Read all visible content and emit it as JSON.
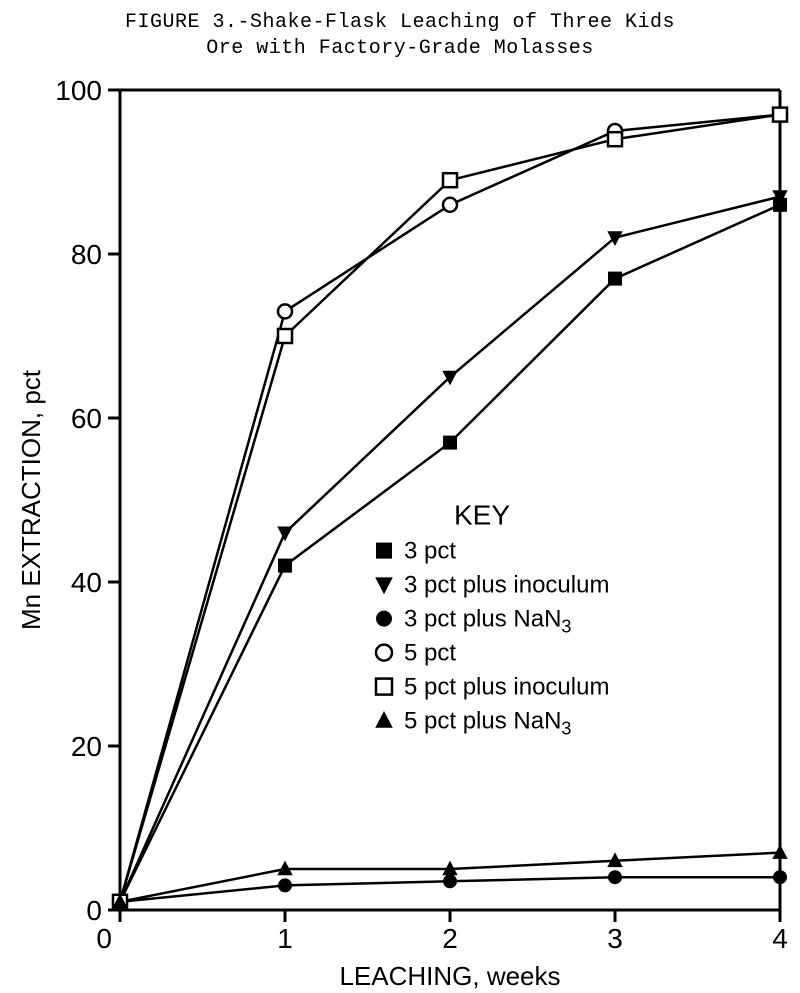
{
  "caption": {
    "line1": "FIGURE 3.-Shake-Flask Leaching of Three Kids",
    "line2": "Ore with Factory-Grade Molasses"
  },
  "chart": {
    "type": "line",
    "background_color": "#ffffff",
    "axis_color": "#000000",
    "axis_line_width": 3,
    "series_line_width": 2.5,
    "x_axis": {
      "label": "LEACHING, weeks",
      "min": 0,
      "max": 4,
      "ticks": [
        0,
        1,
        2,
        3,
        4
      ],
      "tick_labels": [
        "0",
        "1",
        "2",
        "3",
        "4"
      ],
      "label_fontsize": 26,
      "tick_fontsize": 28
    },
    "y_axis": {
      "label": "Mn EXTRACTION, pct",
      "min": 0,
      "max": 100,
      "ticks": [
        0,
        20,
        40,
        60,
        80,
        100
      ],
      "tick_labels": [
        "0",
        "20",
        "40",
        "60",
        "80",
        "100"
      ],
      "label_fontsize": 26,
      "tick_fontsize": 28
    },
    "legend": {
      "title": "KEY",
      "title_fontsize": 28,
      "item_fontsize": 24,
      "items": [
        {
          "marker": "square-filled",
          "label": "3 pct"
        },
        {
          "marker": "triangle-down-filled",
          "label": "3 pct plus inoculum"
        },
        {
          "marker": "circle-filled",
          "label": "3 pct plus NaN",
          "sub": "3"
        },
        {
          "marker": "circle-open",
          "label": "5 pct"
        },
        {
          "marker": "square-open",
          "label": "5 pct plus inoculum"
        },
        {
          "marker": "triangle-up-filled",
          "label": "5 pct plus NaN",
          "sub": "3"
        }
      ]
    },
    "series": [
      {
        "name": "3 pct",
        "marker": "square-filled",
        "color": "#000000",
        "x": [
          0,
          1,
          2,
          3,
          4
        ],
        "y": [
          1,
          42,
          57,
          77,
          86
        ]
      },
      {
        "name": "3 pct plus inoculum",
        "marker": "triangle-down-filled",
        "color": "#000000",
        "x": [
          0,
          1,
          2,
          3,
          4
        ],
        "y": [
          1,
          46,
          65,
          82,
          87
        ]
      },
      {
        "name": "3 pct plus NaN3",
        "marker": "circle-filled",
        "color": "#000000",
        "x": [
          0,
          1,
          2,
          3,
          4
        ],
        "y": [
          1,
          3,
          3.5,
          4,
          4
        ]
      },
      {
        "name": "5 pct",
        "marker": "circle-open",
        "color": "#000000",
        "x": [
          0,
          1,
          2,
          3,
          4
        ],
        "y": [
          1,
          73,
          86,
          95,
          97
        ]
      },
      {
        "name": "5 pct plus inoculum",
        "marker": "square-open",
        "color": "#000000",
        "x": [
          0,
          1,
          2,
          3,
          4
        ],
        "y": [
          1,
          70,
          89,
          94,
          97
        ]
      },
      {
        "name": "5 pct plus NaN3",
        "marker": "triangle-up-filled",
        "color": "#000000",
        "x": [
          0,
          1,
          2,
          3,
          4
        ],
        "y": [
          1,
          5,
          5,
          6,
          7
        ]
      }
    ]
  }
}
